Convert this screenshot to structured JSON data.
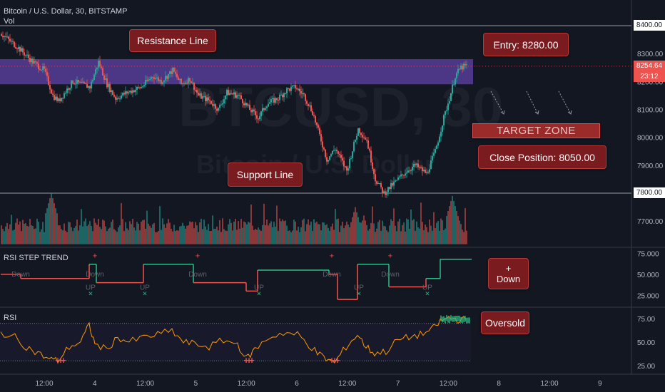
{
  "header": {
    "symbol_line": "Bitcoin / U.S. Dollar, 30, BITSTAMP",
    "volume_label": "Vol",
    "rsi_step_label": "RSI STEP TREND",
    "rsi_label": "RSI"
  },
  "watermark": {
    "ticker": "BTCUSD, 30",
    "name": "Bitcoin / U.S. Dollar"
  },
  "annotations": {
    "resistance": "Resistance Line",
    "support": "Support Line",
    "entry": "Entry: 8280.00",
    "target_zone": "TARGET ZONE",
    "close_position": "Close Position: 8050.00",
    "plus_down": "+\nDown",
    "oversold": "Oversold"
  },
  "price_tags": {
    "current": "8254.64",
    "countdown": "23:12",
    "resistance_level": "8400.00",
    "support_level": "7800.00"
  },
  "colors": {
    "up": "#26a69a",
    "down": "#ef5350",
    "zone": "#5b3fa0",
    "step_up": "#2ebd85",
    "step_down": "#ef5350",
    "rsi": "#ff9800",
    "background": "#131722"
  },
  "chart_data": [
    {
      "type": "candlestick",
      "title": "Bitcoin / U.S. Dollar, 30, BITSTAMP",
      "ylim": [
        7640,
        8430
      ],
      "y_ticks": [
        8400,
        8300,
        8200,
        8100,
        8000,
        7900,
        7800,
        7700
      ],
      "x_ticks": [
        "12:00",
        "4",
        "12:00",
        "5",
        "12:00",
        "6",
        "12:00",
        "7",
        "12:00",
        "8",
        "12:00",
        "9"
      ],
      "resistance_line": 8400,
      "support_line": 7800,
      "resistance_zone": [
        8190,
        8280
      ],
      "entry": 8280,
      "close_position": 8050,
      "last_price": 8254.64,
      "close_path": [
        [
          0,
          8370
        ],
        [
          12,
          8320
        ],
        [
          22,
          8270
        ],
        [
          30,
          8240
        ],
        [
          36,
          8150
        ],
        [
          40,
          8130
        ],
        [
          50,
          8200
        ],
        [
          62,
          8180
        ],
        [
          68,
          8270
        ],
        [
          74,
          8190
        ],
        [
          80,
          8140
        ],
        [
          88,
          8160
        ],
        [
          98,
          8180
        ],
        [
          106,
          8220
        ],
        [
          112,
          8200
        ],
        [
          120,
          8240
        ],
        [
          126,
          8190
        ],
        [
          132,
          8210
        ],
        [
          138,
          8150
        ],
        [
          146,
          8130
        ],
        [
          152,
          8100
        ],
        [
          158,
          8160
        ],
        [
          166,
          8150
        ],
        [
          174,
          8100
        ],
        [
          180,
          8070
        ],
        [
          186,
          8120
        ],
        [
          194,
          8140
        ],
        [
          200,
          8170
        ],
        [
          206,
          8180
        ],
        [
          212,
          8150
        ],
        [
          218,
          8090
        ],
        [
          224,
          7990
        ],
        [
          228,
          7920
        ],
        [
          234,
          7960
        ],
        [
          242,
          7880
        ],
        [
          250,
          8030
        ],
        [
          256,
          7990
        ],
        [
          262,
          7850
        ],
        [
          268,
          7800
        ],
        [
          276,
          7840
        ],
        [
          284,
          7880
        ],
        [
          290,
          7900
        ],
        [
          298,
          7870
        ],
        [
          304,
          7950
        ],
        [
          310,
          8070
        ],
        [
          314,
          8140
        ],
        [
          318,
          8220
        ],
        [
          322,
          8250
        ],
        [
          326,
          8255
        ]
      ],
      "volume_peaks": [
        [
          35,
          7800
        ],
        [
          62,
          7700
        ],
        [
          248,
          7750
        ],
        [
          254,
          7720
        ],
        [
          316,
          7790
        ]
      ]
    },
    {
      "type": "step",
      "title": "RSI STEP TREND",
      "ylim": [
        15,
        78
      ],
      "y_ticks": [
        75,
        50,
        25
      ],
      "segments": [
        {
          "x0": 0,
          "x1": 14,
          "y": 50,
          "dir": "down"
        },
        {
          "x0": 14,
          "x1": 62,
          "y": 45,
          "dir": "down"
        },
        {
          "x0": 62,
          "x1": 67,
          "y": 62,
          "dir": "up"
        },
        {
          "x0": 67,
          "x1": 100,
          "y": 40,
          "dir": "down"
        },
        {
          "x0": 100,
          "x1": 135,
          "y": 62,
          "dir": "up"
        },
        {
          "x0": 135,
          "x1": 172,
          "y": 40,
          "dir": "down"
        },
        {
          "x0": 172,
          "x1": 180,
          "y": 30,
          "dir": "down"
        },
        {
          "x0": 180,
          "x1": 230,
          "y": 55,
          "dir": "up"
        },
        {
          "x0": 230,
          "x1": 236,
          "y": 50,
          "dir": "down"
        },
        {
          "x0": 236,
          "x1": 250,
          "y": 20,
          "dir": "down"
        },
        {
          "x0": 250,
          "x1": 272,
          "y": 62,
          "dir": "up"
        },
        {
          "x0": 272,
          "x1": 298,
          "y": 35,
          "dir": "down"
        },
        {
          "x0": 298,
          "x1": 308,
          "y": 45,
          "dir": "up"
        },
        {
          "x0": 308,
          "x1": 330,
          "y": 68,
          "dir": "up"
        }
      ],
      "signals": [
        {
          "x": 66,
          "label": "+",
          "kind": "down"
        },
        {
          "x": 138,
          "label": "+",
          "kind": "down"
        },
        {
          "x": 232,
          "label": "+",
          "kind": "down"
        },
        {
          "x": 273,
          "label": "+",
          "kind": "down"
        },
        {
          "x": 63,
          "label": "×",
          "kind": "up"
        },
        {
          "x": 101,
          "label": "×",
          "kind": "up"
        },
        {
          "x": 181,
          "label": "×",
          "kind": "up"
        },
        {
          "x": 251,
          "label": "×",
          "kind": "up"
        },
        {
          "x": 299,
          "label": "×",
          "kind": "up"
        }
      ],
      "down_labels": [
        [
          14,
          "Down"
        ],
        [
          66,
          "Down"
        ],
        [
          138,
          "Down"
        ],
        [
          232,
          "Down"
        ],
        [
          273,
          "Down"
        ]
      ],
      "up_labels": [
        [
          63,
          "UP"
        ],
        [
          101,
          "UP"
        ],
        [
          181,
          "UP"
        ],
        [
          251,
          "UP"
        ],
        [
          299,
          "UP"
        ]
      ]
    },
    {
      "type": "line",
      "title": "RSI",
      "ylim": [
        18,
        85
      ],
      "y_ticks": [
        75,
        50,
        25
      ],
      "bands": [
        70,
        30
      ],
      "values": [
        [
          0,
          60
        ],
        [
          10,
          55
        ],
        [
          18,
          45
        ],
        [
          26,
          38
        ],
        [
          34,
          32
        ],
        [
          40,
          30
        ],
        [
          48,
          45
        ],
        [
          56,
          50
        ],
        [
          62,
          68
        ],
        [
          66,
          48
        ],
        [
          74,
          42
        ],
        [
          82,
          55
        ],
        [
          90,
          50
        ],
        [
          100,
          55
        ],
        [
          110,
          58
        ],
        [
          120,
          62
        ],
        [
          128,
          50
        ],
        [
          136,
          48
        ],
        [
          146,
          45
        ],
        [
          156,
          52
        ],
        [
          166,
          48
        ],
        [
          172,
          32
        ],
        [
          178,
          42
        ],
        [
          188,
          55
        ],
        [
          198,
          60
        ],
        [
          208,
          58
        ],
        [
          214,
          50
        ],
        [
          222,
          38
        ],
        [
          228,
          32
        ],
        [
          234,
          28
        ],
        [
          242,
          45
        ],
        [
          250,
          58
        ],
        [
          256,
          45
        ],
        [
          262,
          38
        ],
        [
          270,
          40
        ],
        [
          278,
          52
        ],
        [
          286,
          55
        ],
        [
          294,
          58
        ],
        [
          302,
          63
        ],
        [
          308,
          72
        ],
        [
          314,
          76
        ],
        [
          320,
          74
        ],
        [
          326,
          74
        ]
      ],
      "oversold_marks": [
        [
          40,
          30
        ],
        [
          172,
          30
        ],
        [
          232,
          30
        ]
      ]
    }
  ]
}
